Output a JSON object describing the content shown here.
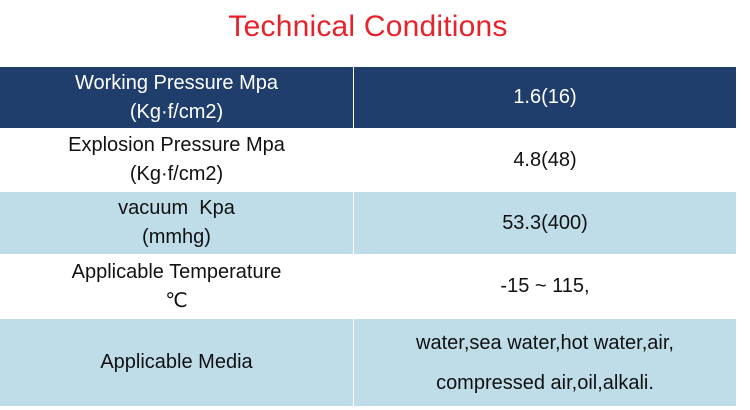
{
  "title": "Technical Conditions",
  "rows": [
    {
      "label_line1": "Working Pressure Mpa",
      "label_line2": "(Kg·f/cm2)",
      "value": "1.6(16)"
    },
    {
      "label_line1": "Explosion Pressure Mpa",
      "label_line2": "(Kg·f/cm2)",
      "value": "4.8(48)"
    },
    {
      "label_line1": "vacuum  Kpa",
      "label_line2": "(mmhg)",
      "value": "53.3(400)"
    },
    {
      "label_line1": "Applicable Temperature",
      "label_line2": "℃",
      "value": "-15 ~ 115,"
    },
    {
      "label_line1": "Applicable Media",
      "value_line1": "water,sea water,hot water,air,",
      "value_line2": "compressed air,oil,alkali."
    }
  ],
  "colors": {
    "title": "#e8222b",
    "header_row": "#1f3e6c",
    "tinted_row": "#bedde8"
  }
}
